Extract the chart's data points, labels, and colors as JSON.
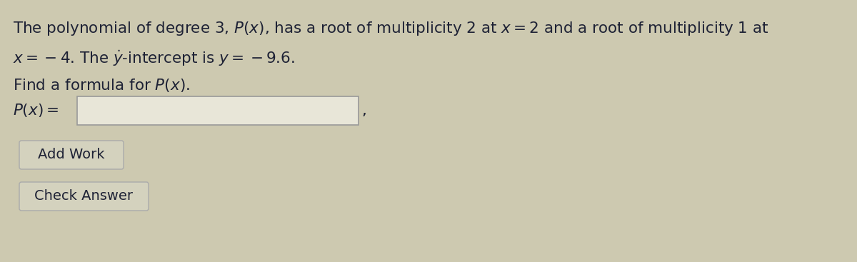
{
  "bg_color": "#cdc9b0",
  "text_color": "#1e2235",
  "line1": "The polynomial of degree 3, $P(x)$, has a root of multiplicity 2 at $x = 2$ and a root of multiplicity 1 at",
  "line2": "$x =  - 4$. The $\\dot{y}$-intercept is $y =  - 9.6$.",
  "line3": "Find a formula for $P(x)$.",
  "label": "$P(x) =$",
  "button1": "Add Work",
  "button2": "Check Answer",
  "input_box_color": "#e8e6d8",
  "input_box_border": "#999999",
  "button_bg": "#d4d2be",
  "button_border": "#aaaaaa",
  "font_size_text": 15.5,
  "font_size_label": 15.5,
  "font_size_button": 14
}
